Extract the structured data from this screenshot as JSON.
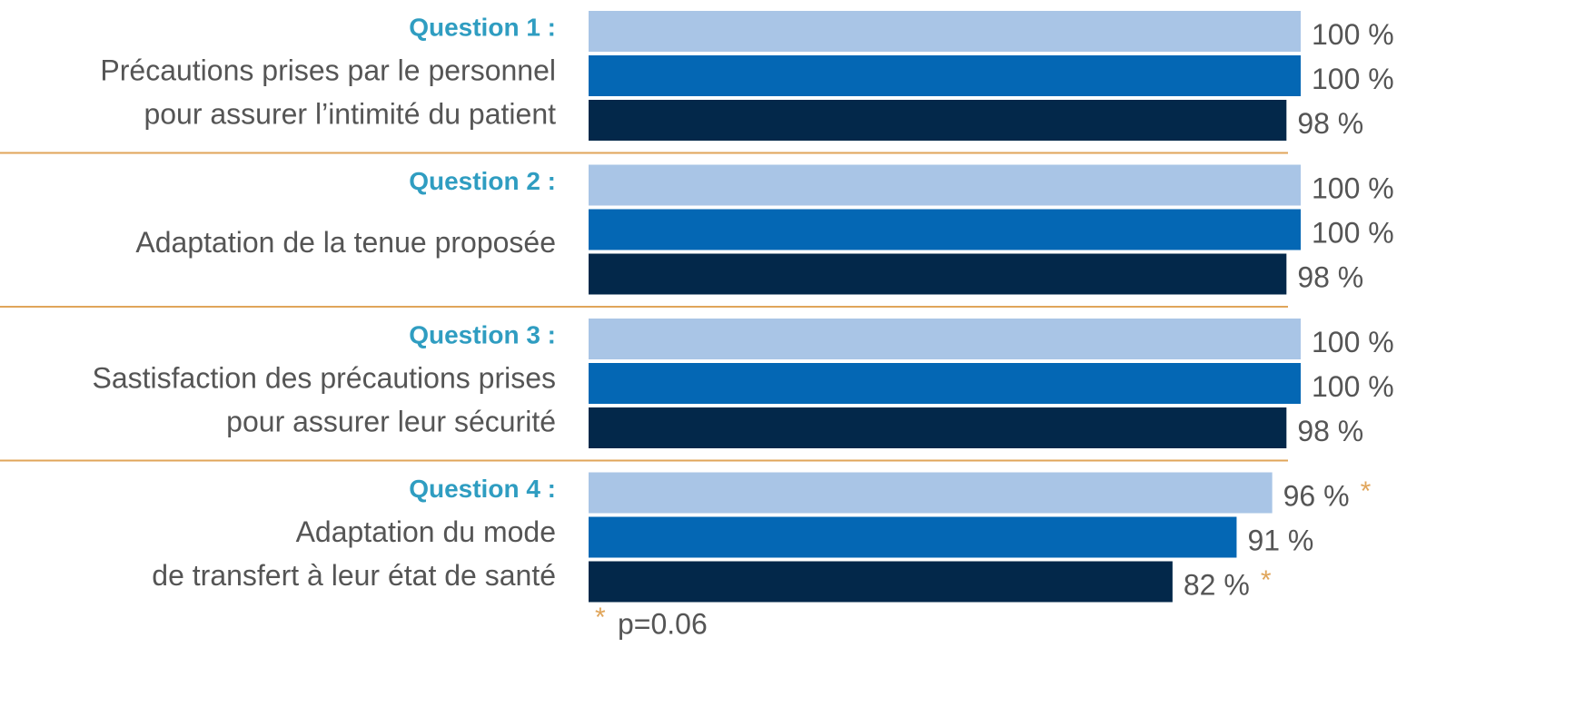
{
  "chart_data": {
    "type": "bar",
    "orientation": "horizontal",
    "questions": [
      "Question 1 :",
      "Question 2 :",
      "Question 3 :",
      "Question 4 :"
    ],
    "categories": [
      [
        "Précautions prises par le personnel",
        "pour assurer l’intimité du patient"
      ],
      [
        "Adaptation de la tenue proposée"
      ],
      [
        "Sastisfaction des précautions prises",
        "pour assurer leur sécurité"
      ],
      [
        "Adaptation du mode",
        "de transfert à leur état de santé"
      ]
    ],
    "series": [
      {
        "color": "#a9c5e6",
        "values": [
          100,
          100,
          100,
          96
        ],
        "value_labels": [
          "100 %",
          "100 %",
          "100 %",
          "96 %"
        ],
        "flags": [
          null,
          null,
          null,
          "*"
        ]
      },
      {
        "color": "#0467b4",
        "values": [
          100,
          100,
          100,
          91
        ],
        "value_labels": [
          "100 %",
          "100 %",
          "100 %",
          "91 %"
        ],
        "flags": [
          null,
          null,
          null,
          null
        ]
      },
      {
        "color": "#03284a",
        "values": [
          98,
          98,
          98,
          82
        ],
        "value_labels": [
          "98 %",
          "98 %",
          "98 %",
          "82 %"
        ],
        "flags": [
          null,
          null,
          null,
          "*"
        ]
      }
    ],
    "xlim": [
      0,
      100
    ],
    "footnote": {
      "marker": "*",
      "text": "p=0.06"
    }
  }
}
